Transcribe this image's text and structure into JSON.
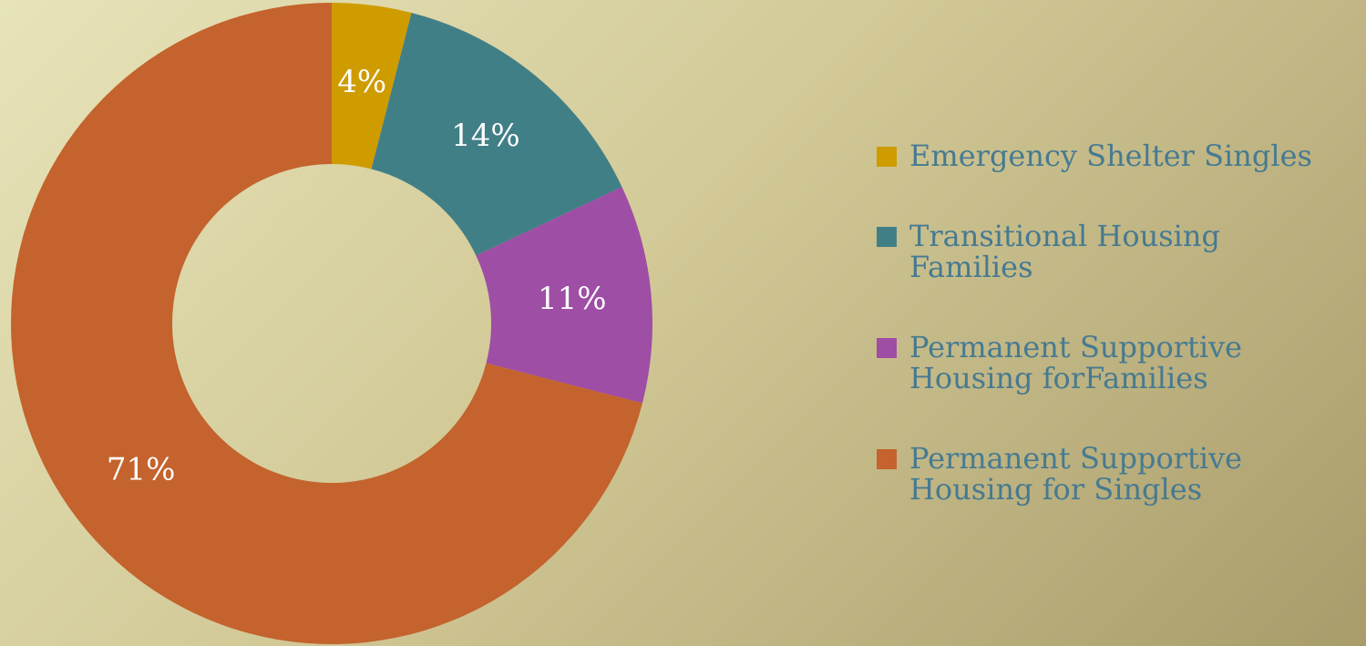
{
  "chart_data": {
    "type": "donut",
    "categories": [
      "Emergency Shelter Singles",
      "Transitional Housing Families",
      "Permanent Supportive Housing forFamilies",
      "Permanent Supportive Housing for Singles"
    ],
    "values": [
      4,
      14,
      11,
      71
    ],
    "value_labels": [
      "4%",
      "14%",
      "11%",
      "71%"
    ],
    "colors": [
      "#cf9c00",
      "#417f87",
      "#9e4ea4",
      "#c4632d"
    ],
    "legend": "right"
  }
}
